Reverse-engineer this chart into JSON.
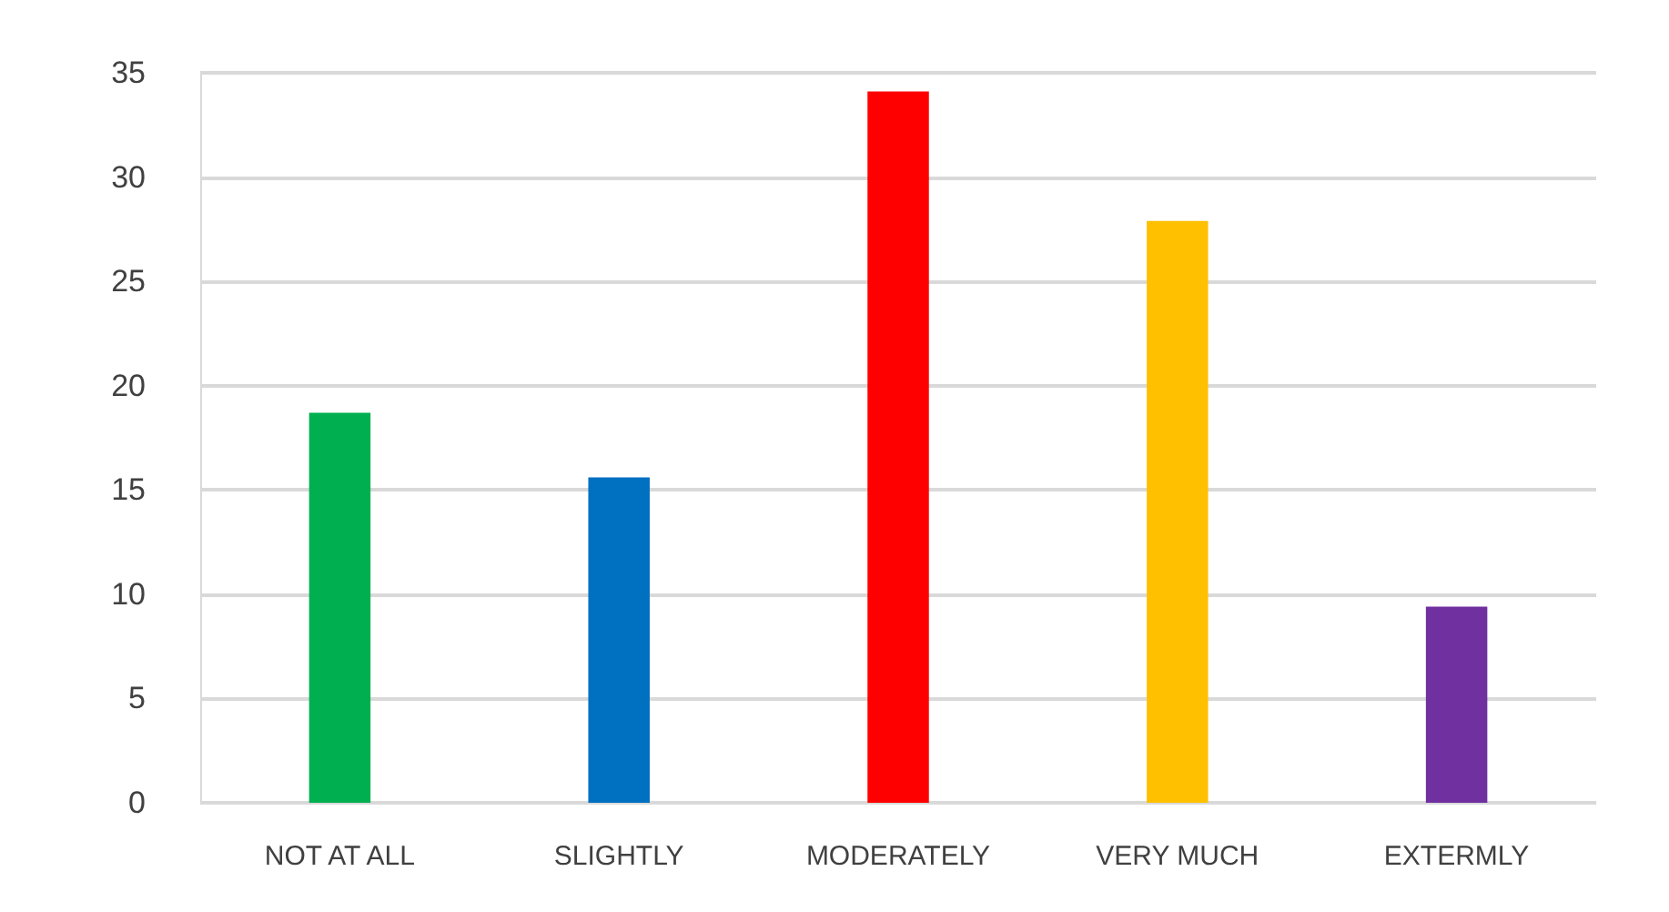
{
  "chart_data": {
    "type": "bar",
    "categories": [
      "NOT AT ALL",
      "SLIGHTLY",
      "MODERATELY",
      "VERY MUCH",
      "EXTERMLY"
    ],
    "values": [
      18.7,
      15.6,
      34.1,
      27.9,
      9.4
    ],
    "colors": [
      "#00b050",
      "#0070c0",
      "#ff0000",
      "#ffc000",
      "#7030a0"
    ],
    "ylim": [
      0,
      35
    ],
    "yticks": [
      0,
      5,
      10,
      15,
      20,
      25,
      30,
      35
    ],
    "grid": "y"
  }
}
